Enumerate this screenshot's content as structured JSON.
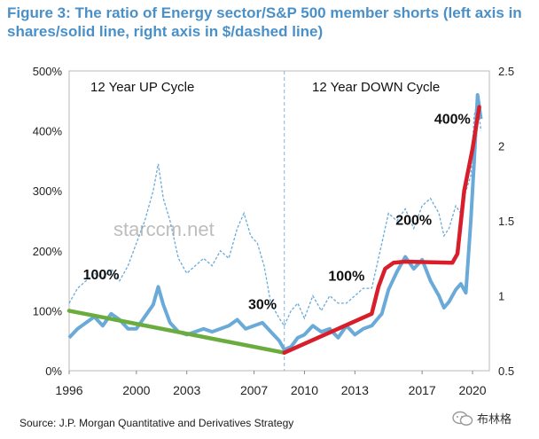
{
  "title": "Figure 3: The ratio of Energy sector/S&P 500 member shorts (left axis in shares/solid line, right axis in $/dashed line)",
  "source": "Source: J.P. Morgan Quantitative and Derivatives Strategy",
  "badge": "布林格",
  "watermark": "starccm.net",
  "colors": {
    "title": "#4a90c8",
    "solid": "#6aaad9",
    "dashed": "#6aaad9",
    "green": "#6aac3e",
    "red": "#d81e2a"
  },
  "chart_data": {
    "type": "line",
    "title": "Figure 3: The ratio of Energy sector/S&P 500 member shorts (left axis in shares/solid line, right axis in $/dashed line)",
    "xlim": [
      1996,
      2021
    ],
    "ylim_left": [
      0,
      500
    ],
    "ylim_right": [
      0.5,
      2.5
    ],
    "x_ticks": [
      1996,
      2000,
      2003,
      2007,
      2010,
      2013,
      2017,
      2020
    ],
    "y_left_ticks": [
      0,
      100,
      200,
      300,
      400,
      500
    ],
    "y_left_tick_labels": [
      "0%",
      "100%",
      "200%",
      "300%",
      "400%",
      "500%"
    ],
    "y_right_ticks": [
      0.5,
      1,
      1.5,
      2,
      2.5
    ],
    "y_right_tick_labels": [
      "0.5",
      "1",
      "1.5",
      "2",
      "2.5"
    ],
    "cycle_divider_x": 2008.8,
    "regions": [
      {
        "label": "12 Year UP Cycle"
      },
      {
        "label": "12 Year DOWN Cycle"
      }
    ],
    "series": [
      {
        "name": "Shares ratio (left axis, solid)",
        "axis": "left",
        "x": [
          1996.0,
          1996.5,
          1997.0,
          1997.5,
          1998.0,
          1998.5,
          1999.0,
          1999.5,
          2000.0,
          2000.5,
          2001.0,
          2001.3,
          2001.6,
          2002.0,
          2002.5,
          2003.0,
          2003.5,
          2004.0,
          2004.5,
          2005.0,
          2005.5,
          2006.0,
          2006.5,
          2007.0,
          2007.5,
          2008.0,
          2008.5,
          2008.8,
          2009.2,
          2009.6,
          2010.0,
          2010.5,
          2011.0,
          2011.5,
          2012.0,
          2012.5,
          2013.0,
          2013.5,
          2014.0,
          2014.3,
          2014.6,
          2015.0,
          2015.5,
          2016.0,
          2016.5,
          2017.0,
          2017.5,
          2018.0,
          2018.3,
          2018.6,
          2019.0,
          2019.3,
          2019.6,
          2019.9,
          2020.1,
          2020.3,
          2020.5
        ],
        "values": [
          55,
          70,
          80,
          90,
          75,
          95,
          85,
          70,
          70,
          90,
          110,
          140,
          110,
          80,
          65,
          60,
          65,
          70,
          65,
          70,
          75,
          85,
          70,
          75,
          80,
          65,
          50,
          35,
          40,
          55,
          60,
          75,
          65,
          70,
          55,
          75,
          60,
          70,
          75,
          85,
          95,
          135,
          165,
          190,
          170,
          185,
          150,
          125,
          105,
          115,
          135,
          145,
          130,
          250,
          350,
          460,
          420
        ]
      },
      {
        "name": "Dollar ratio (right axis, dashed)",
        "axis": "right",
        "x": [
          1996.0,
          1996.5,
          1997.0,
          1997.5,
          1998.0,
          1998.5,
          1999.0,
          1999.5,
          2000.0,
          2000.5,
          2001.0,
          2001.3,
          2001.6,
          2002.0,
          2002.5,
          2003.0,
          2003.5,
          2004.0,
          2004.5,
          2005.0,
          2005.5,
          2006.0,
          2006.4,
          2006.8,
          2007.2,
          2007.6,
          2008.0,
          2008.5,
          2008.8,
          2009.2,
          2009.6,
          2010.0,
          2010.5,
          2011.0,
          2011.5,
          2012.0,
          2012.5,
          2013.0,
          2013.5,
          2014.0,
          2014.3,
          2014.6,
          2015.0,
          2015.5,
          2016.0,
          2016.5,
          2017.0,
          2017.5,
          2018.0,
          2018.3,
          2018.6,
          2019.0,
          2019.3,
          2019.6,
          2019.9,
          2020.1,
          2020.3,
          2020.5
        ],
        "values": [
          0.95,
          1.05,
          1.1,
          1.15,
          1.12,
          1.18,
          1.1,
          1.2,
          1.35,
          1.5,
          1.7,
          1.88,
          1.65,
          1.5,
          1.25,
          1.15,
          1.2,
          1.25,
          1.2,
          1.3,
          1.25,
          1.45,
          1.55,
          1.4,
          1.35,
          1.2,
          0.95,
          0.85,
          0.8,
          0.9,
          0.95,
          0.85,
          1.0,
          0.9,
          1.0,
          0.95,
          0.95,
          1.0,
          1.05,
          1.05,
          1.2,
          1.35,
          1.55,
          1.5,
          1.58,
          1.45,
          1.6,
          1.65,
          1.55,
          1.4,
          1.45,
          1.6,
          1.55,
          1.7,
          1.8,
          2.2,
          2.3,
          2.1
        ]
      }
    ],
    "annotations": [
      {
        "text": "100%",
        "x": 1997.9,
        "y_left": 152
      },
      {
        "text": "30%",
        "x": 2007.5,
        "y_left": 103
      },
      {
        "text": "100%",
        "x": 2012.5,
        "y_left": 150
      },
      {
        "text": "200%",
        "x": 2016.5,
        "y_left": 243
      },
      {
        "text": "400%",
        "x": 2018.8,
        "y_left": 412
      }
    ],
    "trend_lines": [
      {
        "name": "up-cycle trend",
        "color": "green",
        "x": [
          1996.0,
          2008.8
        ],
        "values": [
          100,
          30
        ]
      },
      {
        "name": "down-cycle trend",
        "color": "red",
        "x": [
          2008.8,
          2014.0,
          2014.4,
          2014.8,
          2015.3,
          2016.0,
          2018.8,
          2019.1,
          2019.5,
          2020.0,
          2020.4
        ],
        "values": [
          30,
          95,
          140,
          170,
          180,
          182,
          180,
          195,
          300,
          370,
          440
        ]
      }
    ]
  }
}
